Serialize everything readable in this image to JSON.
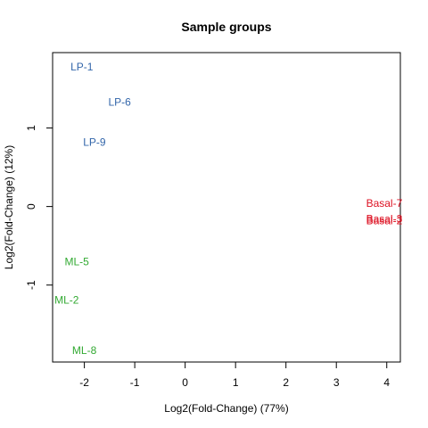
{
  "chart_data": {
    "type": "scatter",
    "title": "Sample groups",
    "xlabel": "Log2(Fold-Change) (77%)",
    "ylabel": "Log2(Fold-Change) (12%)",
    "xlim": [
      -2.63,
      4.27
    ],
    "ylim": [
      -1.98,
      1.96
    ],
    "x_ticks": [
      -2,
      -1,
      0,
      1,
      2,
      3,
      4
    ],
    "y_ticks": [
      -1,
      0,
      1
    ],
    "grid": false,
    "legend": "none",
    "points": [
      {
        "label": "LP-1",
        "x": -2.05,
        "y": 1.78,
        "color": "#3366aa"
      },
      {
        "label": "LP-6",
        "x": -1.3,
        "y": 1.33,
        "color": "#3366aa"
      },
      {
        "label": "LP-9",
        "x": -1.8,
        "y": 0.82,
        "color": "#3366aa"
      },
      {
        "label": "ML-5",
        "x": -2.15,
        "y": -0.7,
        "color": "#33aa33"
      },
      {
        "label": "ML-2",
        "x": -2.35,
        "y": -1.19,
        "color": "#33aa33"
      },
      {
        "label": "ML-8",
        "x": -2.0,
        "y": -1.83,
        "color": "#33aa33"
      },
      {
        "label": "Basal-7",
        "x": 3.95,
        "y": 0.04,
        "color": "#dd1122"
      },
      {
        "label": "Basal-3",
        "x": 3.95,
        "y": -0.16,
        "color": "#dd1122"
      },
      {
        "label": "Basal-2",
        "x": 3.95,
        "y": -0.18,
        "color": "#dd1122"
      }
    ]
  }
}
